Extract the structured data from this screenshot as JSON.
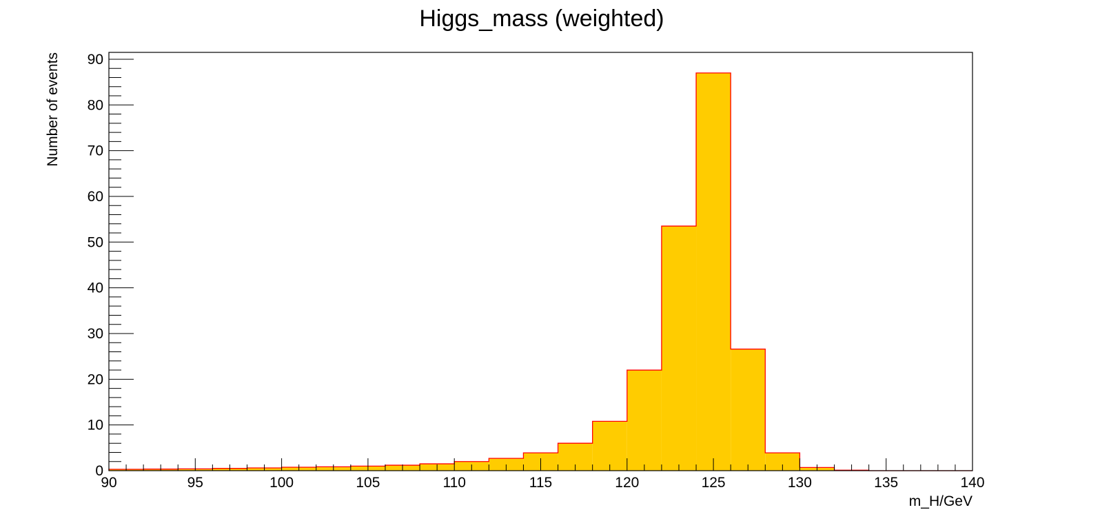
{
  "chart_data": {
    "type": "bar",
    "title": "Higgs_mass (weighted)",
    "xlabel": "m_H/GeV",
    "ylabel": "Number of events",
    "xlim": [
      90,
      140
    ],
    "ylim": [
      0,
      91.5
    ],
    "bin_width": 2,
    "bin_edges": [
      90,
      92,
      94,
      96,
      98,
      100,
      102,
      104,
      106,
      108,
      110,
      112,
      114,
      116,
      118,
      120,
      122,
      124,
      126,
      128,
      130,
      132,
      134,
      136,
      138,
      140
    ],
    "values": [
      0.3,
      0.35,
      0.4,
      0.5,
      0.6,
      0.75,
      0.85,
      1.0,
      1.2,
      1.5,
      2.0,
      2.7,
      3.9,
      6.0,
      10.8,
      22.0,
      53.5,
      87.0,
      26.6,
      3.9,
      0.7,
      0.1,
      0.0,
      0.0,
      0.0
    ],
    "x_ticks": [
      90,
      95,
      100,
      105,
      110,
      115,
      120,
      125,
      130,
      135,
      140
    ],
    "y_ticks": [
      0,
      10,
      20,
      30,
      40,
      50,
      60,
      70,
      80,
      90
    ],
    "fill_color": "#ffcc00",
    "line_color": "#ff0000",
    "grid": false,
    "legend": "none"
  }
}
